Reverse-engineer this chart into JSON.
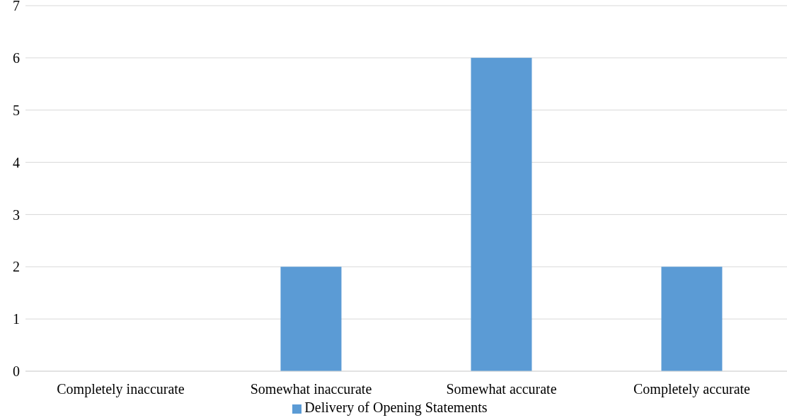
{
  "chart_data": {
    "type": "bar",
    "categories": [
      "Completely inaccurate",
      "Somewhat inaccurate",
      "Somewhat accurate",
      "Completely accurate"
    ],
    "series": [
      {
        "name": "Delivery of Opening Statements",
        "color": "#5b9bd5",
        "values": [
          0,
          2,
          6,
          2
        ]
      }
    ],
    "ylim": [
      0,
      7
    ],
    "yticks": [
      0,
      1,
      2,
      3,
      4,
      5,
      6,
      7
    ],
    "grid": "y",
    "legend": "bottom"
  }
}
